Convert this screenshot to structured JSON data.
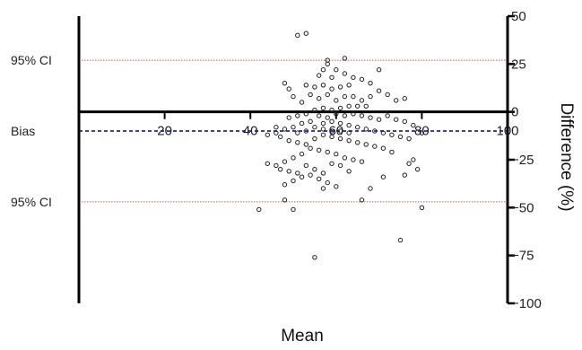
{
  "chart_data": {
    "type": "scatter",
    "title": "",
    "xlabel": "Mean",
    "ylabel": "Difference (%)",
    "xlim": [
      0,
      100
    ],
    "ylim": [
      -100,
      50
    ],
    "x_ticks": [
      20,
      40,
      60,
      80,
      100
    ],
    "y_ticks": [
      50,
      25,
      0,
      -25,
      -50,
      -75,
      -100
    ],
    "grid": false,
    "reference_lines": [
      {
        "label": "95% CI",
        "y": 27,
        "style": "dotted",
        "color": "#e8564b"
      },
      {
        "label": "Bias",
        "y": -10,
        "style": "dashed",
        "color": "#2a3fe0"
      },
      {
        "label": "95% CI",
        "y": -47,
        "style": "dotted",
        "color": "#e8564b"
      }
    ],
    "points": [
      [
        51,
        40
      ],
      [
        53,
        41
      ],
      [
        58,
        27
      ],
      [
        62,
        28
      ],
      [
        58,
        25
      ],
      [
        57,
        22
      ],
      [
        60,
        22
      ],
      [
        56,
        19
      ],
      [
        59,
        18
      ],
      [
        62,
        20
      ],
      [
        64,
        18
      ],
      [
        66,
        17
      ],
      [
        70,
        22
      ],
      [
        68,
        15
      ],
      [
        63,
        14
      ],
      [
        61,
        13
      ],
      [
        59,
        12
      ],
      [
        57,
        14
      ],
      [
        55,
        13
      ],
      [
        53,
        14
      ],
      [
        48,
        15
      ],
      [
        49,
        12
      ],
      [
        50,
        8
      ],
      [
        52,
        5
      ],
      [
        54,
        9
      ],
      [
        56,
        7
      ],
      [
        58,
        9
      ],
      [
        60,
        6
      ],
      [
        62,
        8
      ],
      [
        64,
        8
      ],
      [
        66,
        6
      ],
      [
        68,
        8
      ],
      [
        70,
        11
      ],
      [
        72,
        9
      ],
      [
        74,
        6
      ],
      [
        76,
        7
      ],
      [
        67,
        3
      ],
      [
        65,
        3
      ],
      [
        63,
        3
      ],
      [
        61,
        2
      ],
      [
        59,
        1
      ],
      [
        57,
        2
      ],
      [
        55,
        1
      ],
      [
        53,
        -1
      ],
      [
        51,
        -2
      ],
      [
        49,
        -3
      ],
      [
        56,
        -2
      ],
      [
        58,
        -3
      ],
      [
        60,
        -1
      ],
      [
        62,
        -2
      ],
      [
        64,
        -1
      ],
      [
        66,
        -2
      ],
      [
        68,
        -3
      ],
      [
        70,
        -4
      ],
      [
        72,
        -2
      ],
      [
        74,
        -4
      ],
      [
        76,
        -5
      ],
      [
        57,
        -6
      ],
      [
        59,
        -5
      ],
      [
        61,
        -6
      ],
      [
        63,
        -7
      ],
      [
        65,
        -8
      ],
      [
        67,
        -9
      ],
      [
        69,
        -10
      ],
      [
        71,
        -11
      ],
      [
        73,
        -12
      ],
      [
        75,
        -13
      ],
      [
        77,
        -14
      ],
      [
        54,
        -5
      ],
      [
        52,
        -6
      ],
      [
        50,
        -8
      ],
      [
        48,
        -9
      ],
      [
        46,
        -11
      ],
      [
        44,
        -12
      ],
      [
        47,
        -13
      ],
      [
        49,
        -15
      ],
      [
        51,
        -16
      ],
      [
        53,
        -17
      ],
      [
        55,
        -14
      ],
      [
        57,
        -12
      ],
      [
        59,
        -13
      ],
      [
        61,
        -14
      ],
      [
        63,
        -15
      ],
      [
        65,
        -16
      ],
      [
        67,
        -17
      ],
      [
        69,
        -18
      ],
      [
        71,
        -19
      ],
      [
        73,
        -21
      ],
      [
        55,
        -8
      ],
      [
        57,
        -9
      ],
      [
        59,
        -10
      ],
      [
        61,
        -10
      ],
      [
        63,
        -11
      ],
      [
        53,
        -10
      ],
      [
        51,
        -11
      ],
      [
        54,
        -19
      ],
      [
        56,
        -20
      ],
      [
        58,
        -21
      ],
      [
        60,
        -22
      ],
      [
        62,
        -24
      ],
      [
        64,
        -25
      ],
      [
        66,
        -26
      ],
      [
        52,
        -22
      ],
      [
        50,
        -24
      ],
      [
        48,
        -26
      ],
      [
        46,
        -28
      ],
      [
        44,
        -27
      ],
      [
        47,
        -30
      ],
      [
        49,
        -31
      ],
      [
        51,
        -32
      ],
      [
        53,
        -28
      ],
      [
        55,
        -30
      ],
      [
        57,
        -32
      ],
      [
        59,
        -27
      ],
      [
        61,
        -28
      ],
      [
        63,
        -31
      ],
      [
        56,
        -35
      ],
      [
        58,
        -37
      ],
      [
        60,
        -39
      ],
      [
        54,
        -33
      ],
      [
        52,
        -34
      ],
      [
        50,
        -36
      ],
      [
        48,
        -38
      ],
      [
        57,
        -40
      ],
      [
        68,
        -40
      ],
      [
        71,
        -34
      ],
      [
        78,
        -25
      ],
      [
        77,
        -27
      ],
      [
        79,
        -30
      ],
      [
        76,
        -33
      ],
      [
        80,
        -50
      ],
      [
        66,
        -46
      ],
      [
        48,
        -46
      ],
      [
        42,
        -51
      ],
      [
        50,
        -51
      ],
      [
        75,
        -67
      ],
      [
        55,
        -76
      ],
      [
        46,
        -8
      ],
      [
        80,
        -11
      ],
      [
        78,
        -7
      ]
    ]
  }
}
